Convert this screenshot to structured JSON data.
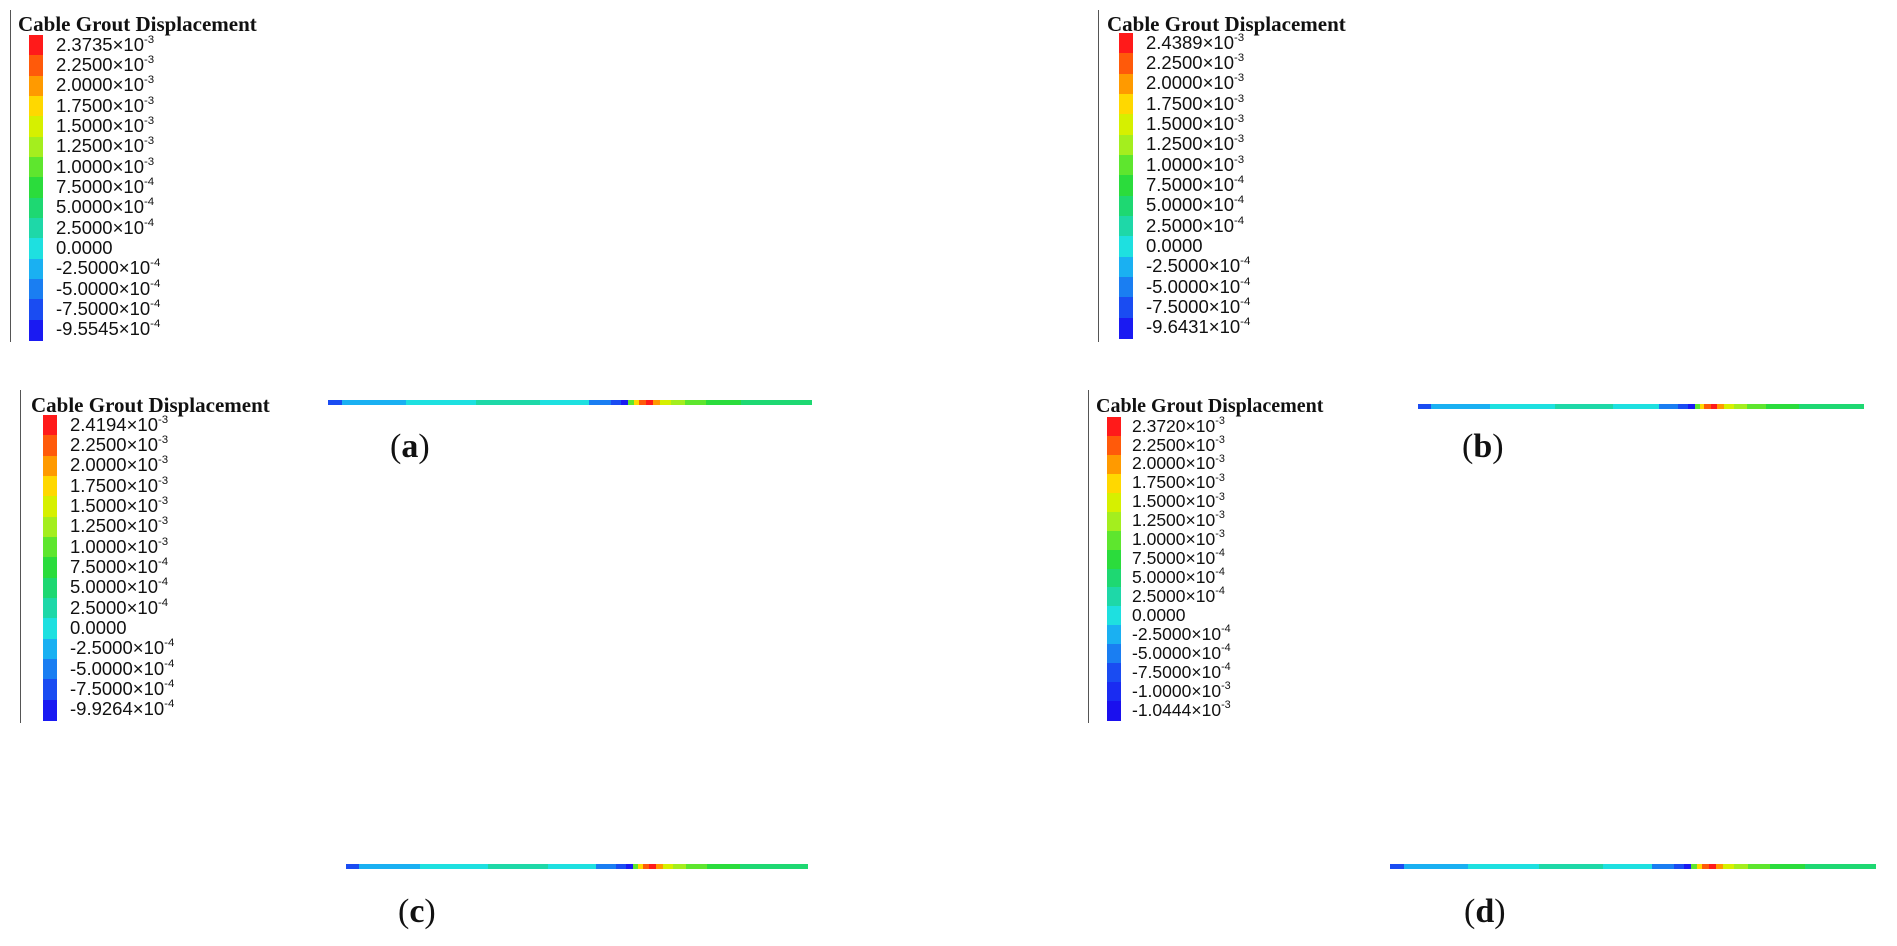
{
  "panels": [
    {
      "id": "a",
      "title": "Cable Grout Displacement",
      "caption_letter": "a",
      "legend": [
        {
          "mant": "2.3735",
          "exp": "-3",
          "color": "#ff1a1a"
        },
        {
          "mant": "2.2500",
          "exp": "-3",
          "color": "#ff5a0a"
        },
        {
          "mant": "2.0000",
          "exp": "-3",
          "color": "#ff9a00"
        },
        {
          "mant": "1.7500",
          "exp": "-3",
          "color": "#ffd800"
        },
        {
          "mant": "1.5000",
          "exp": "-3",
          "color": "#d6f000"
        },
        {
          "mant": "1.2500",
          "exp": "-3",
          "color": "#a4ee1e"
        },
        {
          "mant": "1.0000",
          "exp": "-3",
          "color": "#5ee62e"
        },
        {
          "mant": "7.5000",
          "exp": "-4",
          "color": "#2bdc3c"
        },
        {
          "mant": "5.0000",
          "exp": "-4",
          "color": "#1ed872"
        },
        {
          "mant": "2.5000",
          "exp": "-4",
          "color": "#1ed8a8"
        },
        {
          "mant": "0.0000",
          "exp": "",
          "color": "#1ee0e0"
        },
        {
          "mant": "-2.5000",
          "exp": "-4",
          "color": "#1ab0f2"
        },
        {
          "mant": "-5.0000",
          "exp": "-4",
          "color": "#1a7ef2"
        },
        {
          "mant": "-7.5000",
          "exp": "-4",
          "color": "#1a4cf2"
        },
        {
          "mant": "-9.5545",
          "exp": "-4",
          "color": "#1a1af2"
        }
      ],
      "cable": [
        {
          "w": 4,
          "c": "#1a4cf2"
        },
        {
          "w": 18,
          "c": "#1ab0f2"
        },
        {
          "w": 20,
          "c": "#1ee0e0"
        },
        {
          "w": 18,
          "c": "#1ed8a8"
        },
        {
          "w": 14,
          "c": "#1ee0e0"
        },
        {
          "w": 6,
          "c": "#1a7ef2"
        },
        {
          "w": 3,
          "c": "#1a4cf2"
        },
        {
          "w": 2,
          "c": "#1a1af2"
        },
        {
          "w": 1.5,
          "c": "#5ee62e"
        },
        {
          "w": 1.5,
          "c": "#ffd800"
        },
        {
          "w": 2,
          "c": "#ff5a0a"
        },
        {
          "w": 2,
          "c": "#ff1a1a"
        },
        {
          "w": 2,
          "c": "#ff9a00"
        },
        {
          "w": 3,
          "c": "#d6f000"
        },
        {
          "w": 4,
          "c": "#a4ee1e"
        },
        {
          "w": 6,
          "c": "#5ee62e"
        },
        {
          "w": 10,
          "c": "#2bdc3c"
        },
        {
          "w": 20,
          "c": "#1ed872"
        }
      ]
    },
    {
      "id": "b",
      "title": "Cable Grout Displacement",
      "caption_letter": "b",
      "legend": [
        {
          "mant": "2.4389",
          "exp": "-3",
          "color": "#ff1a1a"
        },
        {
          "mant": "2.2500",
          "exp": "-3",
          "color": "#ff5a0a"
        },
        {
          "mant": "2.0000",
          "exp": "-3",
          "color": "#ff9a00"
        },
        {
          "mant": "1.7500",
          "exp": "-3",
          "color": "#ffd800"
        },
        {
          "mant": "1.5000",
          "exp": "-3",
          "color": "#d6f000"
        },
        {
          "mant": "1.2500",
          "exp": "-3",
          "color": "#a4ee1e"
        },
        {
          "mant": "1.0000",
          "exp": "-3",
          "color": "#5ee62e"
        },
        {
          "mant": "7.5000",
          "exp": "-4",
          "color": "#2bdc3c"
        },
        {
          "mant": "5.0000",
          "exp": "-4",
          "color": "#1ed872"
        },
        {
          "mant": "2.5000",
          "exp": "-4",
          "color": "#1ed8a8"
        },
        {
          "mant": "0.0000",
          "exp": "",
          "color": "#1ee0e0"
        },
        {
          "mant": "-2.5000",
          "exp": "-4",
          "color": "#1ab0f2"
        },
        {
          "mant": "-5.0000",
          "exp": "-4",
          "color": "#1a7ef2"
        },
        {
          "mant": "-7.5000",
          "exp": "-4",
          "color": "#1a4cf2"
        },
        {
          "mant": "-9.6431",
          "exp": "-4",
          "color": "#1a1af2"
        }
      ],
      "cable": [
        {
          "w": 4,
          "c": "#1a4cf2"
        },
        {
          "w": 18,
          "c": "#1ab0f2"
        },
        {
          "w": 20,
          "c": "#1ee0e0"
        },
        {
          "w": 18,
          "c": "#1ed8a8"
        },
        {
          "w": 14,
          "c": "#1ee0e0"
        },
        {
          "w": 6,
          "c": "#1a7ef2"
        },
        {
          "w": 3,
          "c": "#1a4cf2"
        },
        {
          "w": 2,
          "c": "#1a1af2"
        },
        {
          "w": 1.5,
          "c": "#5ee62e"
        },
        {
          "w": 1.5,
          "c": "#ffd800"
        },
        {
          "w": 2,
          "c": "#ff5a0a"
        },
        {
          "w": 2,
          "c": "#ff1a1a"
        },
        {
          "w": 2,
          "c": "#ff9a00"
        },
        {
          "w": 3,
          "c": "#d6f000"
        },
        {
          "w": 4,
          "c": "#a4ee1e"
        },
        {
          "w": 6,
          "c": "#5ee62e"
        },
        {
          "w": 10,
          "c": "#2bdc3c"
        },
        {
          "w": 20,
          "c": "#1ed872"
        }
      ]
    },
    {
      "id": "c",
      "title": "Cable Grout Displacement",
      "caption_letter": "c",
      "legend": [
        {
          "mant": "2.4194",
          "exp": "-3",
          "color": "#ff1a1a"
        },
        {
          "mant": "2.2500",
          "exp": "-3",
          "color": "#ff5a0a"
        },
        {
          "mant": "2.0000",
          "exp": "-3",
          "color": "#ff9a00"
        },
        {
          "mant": "1.7500",
          "exp": "-3",
          "color": "#ffd800"
        },
        {
          "mant": "1.5000",
          "exp": "-3",
          "color": "#d6f000"
        },
        {
          "mant": "1.2500",
          "exp": "-3",
          "color": "#a4ee1e"
        },
        {
          "mant": "1.0000",
          "exp": "-3",
          "color": "#5ee62e"
        },
        {
          "mant": "7.5000",
          "exp": "-4",
          "color": "#2bdc3c"
        },
        {
          "mant": "5.0000",
          "exp": "-4",
          "color": "#1ed872"
        },
        {
          "mant": "2.5000",
          "exp": "-4",
          "color": "#1ed8a8"
        },
        {
          "mant": "0.0000",
          "exp": "",
          "color": "#1ee0e0"
        },
        {
          "mant": "-2.5000",
          "exp": "-4",
          "color": "#1ab0f2"
        },
        {
          "mant": "-5.0000",
          "exp": "-4",
          "color": "#1a7ef2"
        },
        {
          "mant": "-7.5000",
          "exp": "-4",
          "color": "#1a4cf2"
        },
        {
          "mant": "-9.9264",
          "exp": "-4",
          "color": "#1a1af2"
        }
      ],
      "cable": [
        {
          "w": 4,
          "c": "#1a4cf2"
        },
        {
          "w": 18,
          "c": "#1ab0f2"
        },
        {
          "w": 20,
          "c": "#1ee0e0"
        },
        {
          "w": 18,
          "c": "#1ed8a8"
        },
        {
          "w": 14,
          "c": "#1ee0e0"
        },
        {
          "w": 6,
          "c": "#1a7ef2"
        },
        {
          "w": 3,
          "c": "#1a4cf2"
        },
        {
          "w": 2,
          "c": "#1a1af2"
        },
        {
          "w": 1.5,
          "c": "#5ee62e"
        },
        {
          "w": 1.5,
          "c": "#ffd800"
        },
        {
          "w": 2,
          "c": "#ff5a0a"
        },
        {
          "w": 2,
          "c": "#ff1a1a"
        },
        {
          "w": 2,
          "c": "#ff9a00"
        },
        {
          "w": 3,
          "c": "#d6f000"
        },
        {
          "w": 4,
          "c": "#a4ee1e"
        },
        {
          "w": 6,
          "c": "#5ee62e"
        },
        {
          "w": 10,
          "c": "#2bdc3c"
        },
        {
          "w": 20,
          "c": "#1ed872"
        }
      ]
    },
    {
      "id": "d",
      "title": "Cable Grout Displacement",
      "caption_letter": "d",
      "legend": [
        {
          "mant": "2.3720",
          "exp": "-3",
          "color": "#ff1a1a"
        },
        {
          "mant": "2.2500",
          "exp": "-3",
          "color": "#ff5a0a"
        },
        {
          "mant": "2.0000",
          "exp": "-3",
          "color": "#ff9a00"
        },
        {
          "mant": "1.7500",
          "exp": "-3",
          "color": "#ffd800"
        },
        {
          "mant": "1.5000",
          "exp": "-3",
          "color": "#d6f000"
        },
        {
          "mant": "1.2500",
          "exp": "-3",
          "color": "#a4ee1e"
        },
        {
          "mant": "1.0000",
          "exp": "-3",
          "color": "#5ee62e"
        },
        {
          "mant": "7.5000",
          "exp": "-4",
          "color": "#2bdc3c"
        },
        {
          "mant": "5.0000",
          "exp": "-4",
          "color": "#1ed872"
        },
        {
          "mant": "2.5000",
          "exp": "-4",
          "color": "#1ed8a8"
        },
        {
          "mant": "0.0000",
          "exp": "",
          "color": "#1ee0e0"
        },
        {
          "mant": "-2.5000",
          "exp": "-4",
          "color": "#1ab0f2"
        },
        {
          "mant": "-5.0000",
          "exp": "-4",
          "color": "#1a7ef2"
        },
        {
          "mant": "-7.5000",
          "exp": "-4",
          "color": "#1a4cf2"
        },
        {
          "mant": "-1.0000",
          "exp": "-3",
          "color": "#1a2cf2"
        },
        {
          "mant": "-1.0444",
          "exp": "-3",
          "color": "#1a10ee"
        }
      ],
      "cable": [
        {
          "w": 4,
          "c": "#1a4cf2"
        },
        {
          "w": 18,
          "c": "#1ab0f2"
        },
        {
          "w": 20,
          "c": "#1ee0e0"
        },
        {
          "w": 18,
          "c": "#1ed8a8"
        },
        {
          "w": 14,
          "c": "#1ee0e0"
        },
        {
          "w": 6,
          "c": "#1a7ef2"
        },
        {
          "w": 3,
          "c": "#1a4cf2"
        },
        {
          "w": 2,
          "c": "#1a1af2"
        },
        {
          "w": 1.5,
          "c": "#5ee62e"
        },
        {
          "w": 1.5,
          "c": "#ffd800"
        },
        {
          "w": 2,
          "c": "#ff5a0a"
        },
        {
          "w": 2,
          "c": "#ff1a1a"
        },
        {
          "w": 2,
          "c": "#ff9a00"
        },
        {
          "w": 3,
          "c": "#d6f000"
        },
        {
          "w": 4,
          "c": "#a4ee1e"
        },
        {
          "w": 6,
          "c": "#5ee62e"
        },
        {
          "w": 10,
          "c": "#2bdc3c"
        },
        {
          "w": 20,
          "c": "#1ed872"
        }
      ]
    }
  ],
  "times_symbol": "×",
  "exp_base": "10"
}
